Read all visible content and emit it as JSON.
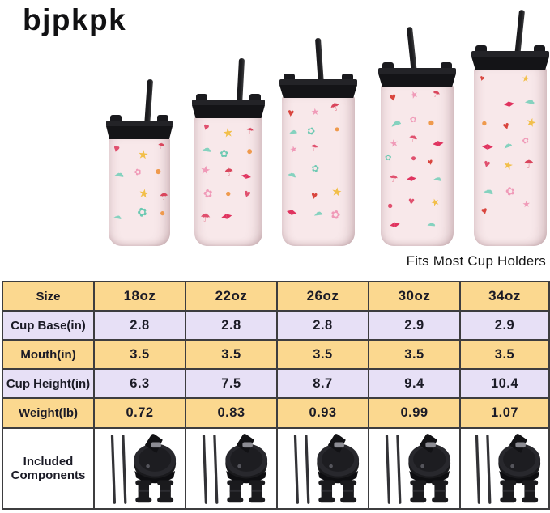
{
  "brand": {
    "logo_text": "bjpkpk"
  },
  "tagline": "Fits Most Cup Holders",
  "product_style": {
    "body_color": "#f8e8ea",
    "lid_color": "#141417",
    "pattern_theme": "pink tumbler with unicorns, rainbows, umbrellas, bows, strawberries, stars"
  },
  "tumblers": [
    {
      "size_label": "18oz",
      "cup_height_in": 6.3
    },
    {
      "size_label": "22oz",
      "cup_height_in": 7.5
    },
    {
      "size_label": "26oz",
      "cup_height_in": 8.7
    },
    {
      "size_label": "30oz",
      "cup_height_in": 9.4
    },
    {
      "size_label": "34oz",
      "cup_height_in": 10.4
    }
  ],
  "pattern_glyphs": [
    {
      "name": "heart-icon",
      "char": "♥",
      "colors": [
        "#e0506e",
        "#d9453e"
      ]
    },
    {
      "name": "star-icon",
      "char": "★",
      "colors": [
        "#f2bf4a",
        "#f09ab8"
      ]
    },
    {
      "name": "umbrella-icon",
      "char": "☂",
      "colors": [
        "#d9455c",
        "#e0506e"
      ]
    },
    {
      "name": "bow-icon",
      "char": "◂▸",
      "colors": [
        "#e0335f"
      ]
    },
    {
      "name": "cloud-icon",
      "char": "☁",
      "colors": [
        "#85d2bf"
      ]
    },
    {
      "name": "flower-icon",
      "char": "✿",
      "colors": [
        "#6cc9b2",
        "#f09ab8"
      ]
    },
    {
      "name": "balloon-icon",
      "char": "●",
      "colors": [
        "#ef9a4d",
        "#e0506e"
      ]
    }
  ],
  "spec_table": {
    "rows": [
      {
        "label": "Size",
        "band": "tan",
        "values": [
          "18oz",
          "22oz",
          "26oz",
          "30oz",
          "34oz"
        ]
      },
      {
        "label": "Cup Base(in)",
        "band": "lavender",
        "values": [
          "2.8",
          "2.8",
          "2.8",
          "2.9",
          "2.9"
        ]
      },
      {
        "label": "Mouth(in)",
        "band": "tan",
        "values": [
          "3.5",
          "3.5",
          "3.5",
          "3.5",
          "3.5"
        ]
      },
      {
        "label": "Cup Height(in)",
        "band": "lavender",
        "values": [
          "6.3",
          "7.5",
          "8.7",
          "9.4",
          "10.4"
        ]
      },
      {
        "label": "Weight(lb)",
        "band": "tan",
        "values": [
          "0.72",
          "0.83",
          "0.93",
          "0.99",
          "1.07"
        ]
      },
      {
        "label": "Included Components",
        "band": "white",
        "components": [
          "2 straws",
          "flip-top lid",
          "2 straw stoppers"
        ]
      }
    ],
    "colors": {
      "tan": "#fbd88f",
      "lavender": "#e7e0f6",
      "white": "#ffffff",
      "border": "#3d3d3f",
      "text": "#1b1b26"
    }
  }
}
